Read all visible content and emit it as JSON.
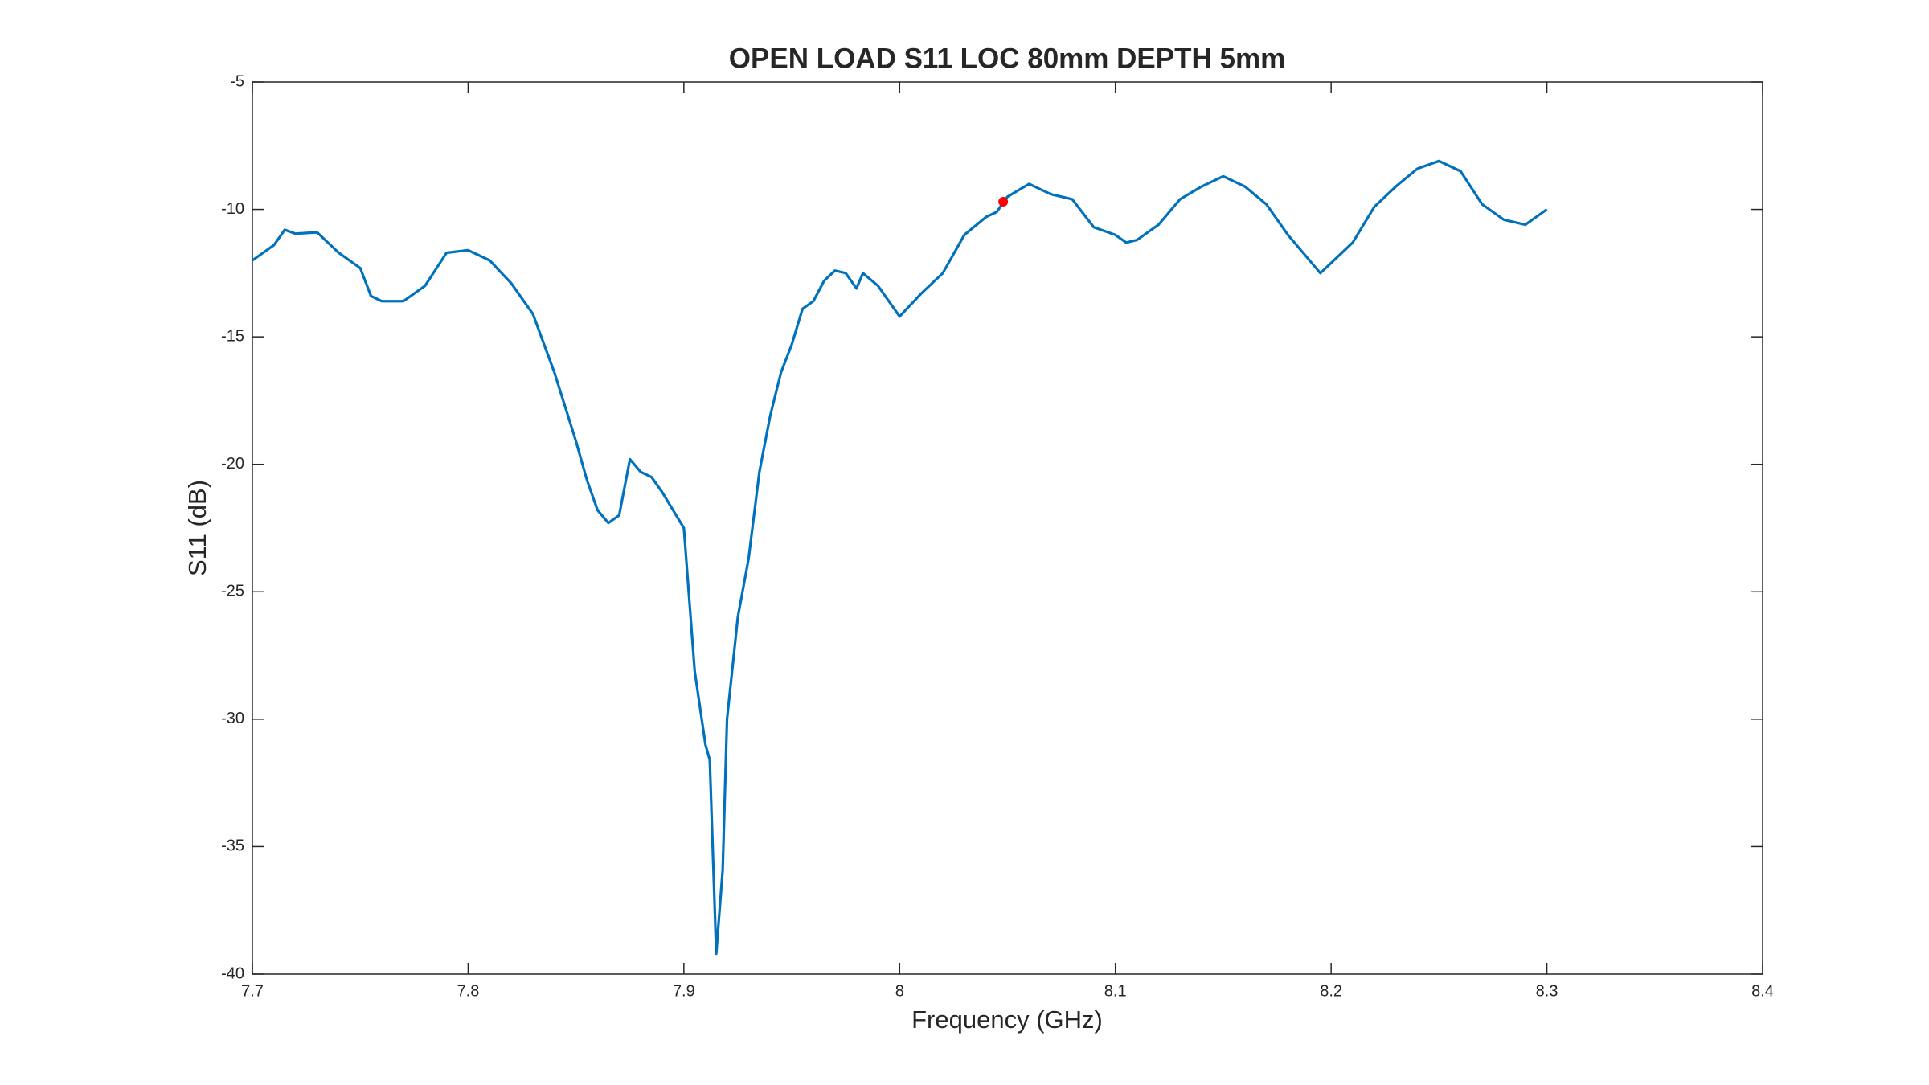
{
  "chart_data": {
    "type": "line",
    "title": "OPEN LOAD S11 LOC 80mm DEPTH 5mm",
    "x_label": "Frequency (GHz)",
    "y_label": "S11 (dB)",
    "x": [
      7.7,
      7.71,
      7.715,
      7.72,
      7.73,
      7.74,
      7.75,
      7.755,
      7.76,
      7.77,
      7.78,
      7.79,
      7.8,
      7.81,
      7.82,
      7.83,
      7.84,
      7.85,
      7.855,
      7.86,
      7.865,
      7.87,
      7.875,
      7.88,
      7.885,
      7.89,
      7.9,
      7.905,
      7.91,
      7.912,
      7.915,
      7.918,
      7.92,
      7.925,
      7.93,
      7.935,
      7.94,
      7.945,
      7.95,
      7.955,
      7.96,
      7.965,
      7.97,
      7.975,
      7.98,
      7.983,
      7.99,
      8.0,
      8.01,
      8.02,
      8.03,
      8.04,
      8.045,
      8.05,
      8.06,
      8.07,
      8.08,
      8.09,
      8.1,
      8.105,
      8.11,
      8.12,
      8.13,
      8.14,
      8.15,
      8.16,
      8.17,
      8.18,
      8.19,
      8.195,
      8.2,
      8.21,
      8.22,
      8.23,
      8.24,
      8.25,
      8.26,
      8.27,
      8.28,
      8.29,
      8.3
    ],
    "series": [
      {
        "color": "#0072bd",
        "values": [
          -12.0,
          -11.4,
          -10.8,
          -10.95,
          -10.9,
          -11.7,
          -12.3,
          -13.4,
          -13.6,
          -13.6,
          -13.0,
          -11.7,
          -11.6,
          -12.0,
          -12.9,
          -14.1,
          -16.4,
          -19.1,
          -20.6,
          -21.8,
          -22.3,
          -22.0,
          -19.8,
          -20.3,
          -20.5,
          -21.1,
          -22.5,
          -28.1,
          -31.0,
          -31.6,
          -39.2,
          -35.9,
          -30.0,
          -26.0,
          -23.7,
          -20.3,
          -18.1,
          -16.4,
          -15.3,
          -13.9,
          -13.6,
          -12.8,
          -12.4,
          -12.5,
          -13.1,
          -12.5,
          -13.0,
          -14.2,
          -13.3,
          -12.5,
          -11.0,
          -10.3,
          -10.1,
          -9.5,
          -9.0,
          -9.4,
          -9.6,
          -10.7,
          -11.0,
          -11.3,
          -11.2,
          -10.6,
          -9.6,
          -9.1,
          -8.7,
          -9.1,
          -9.8,
          -11.0,
          -12.0,
          -12.5,
          -12.1,
          -11.3,
          -9.9,
          -9.1,
          -8.4,
          -8.1,
          -8.5,
          -9.8,
          -10.4,
          -10.6,
          -10.0
        ]
      }
    ],
    "marker": {
      "x": 8.048,
      "y": -9.7,
      "color": "#ff0000"
    },
    "xlim": [
      7.7,
      8.4
    ],
    "xticks": [
      7.7,
      7.8,
      7.9,
      8,
      8.1,
      8.2,
      8.3,
      8.4
    ],
    "ylim": [
      -40,
      -5
    ],
    "yticks": [
      -40,
      -35,
      -30,
      -25,
      -20,
      -15,
      -10,
      -5
    ]
  }
}
